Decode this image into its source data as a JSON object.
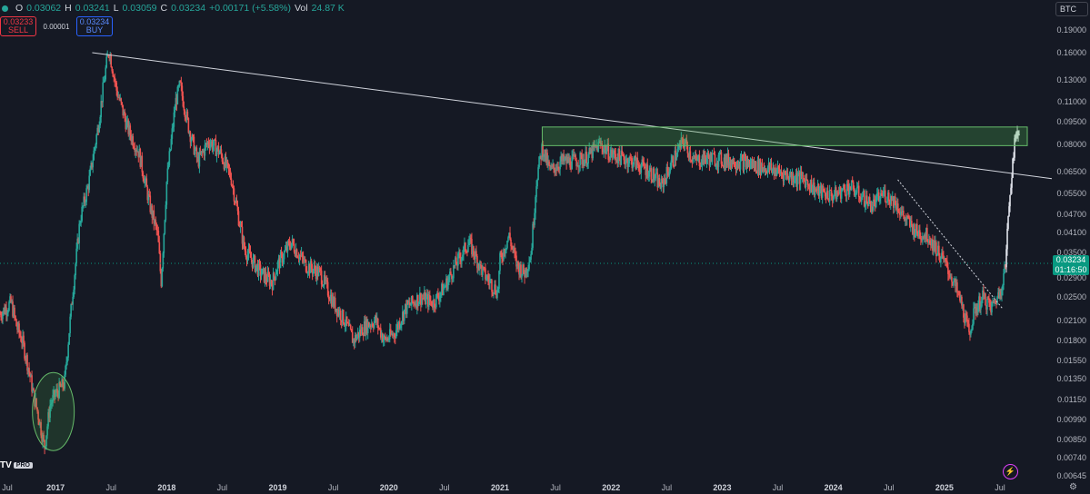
{
  "header": {
    "open_label": "O",
    "open": "0.03062",
    "high_label": "H",
    "high": "0.03241",
    "low_label": "L",
    "low": "0.03059",
    "close_label": "C",
    "close": "0.03234",
    "change": "+0.00171 (+5.58%)",
    "vol_label": "Vol",
    "vol": "24.87 K"
  },
  "trade": {
    "sell_price": "0.03233",
    "sell_label": "SELL",
    "spread": "0.00001",
    "buy_price": "0.03234",
    "buy_label": "BUY"
  },
  "symbol": "BTC",
  "current_price": "0.03234",
  "countdown": "01:16:50",
  "logo_text": "TV",
  "logo_badge": "PRO",
  "colors": {
    "up": "#26a69a",
    "down": "#ef5350",
    "accent": "#089981",
    "zone": "#4caf50"
  },
  "chart_data": {
    "type": "candlestick",
    "scale": "log",
    "ylim": [
      0.0061,
      0.205
    ],
    "y_ticks": [
      "0.19000",
      "0.16000",
      "0.13000",
      "0.11000",
      "0.09500",
      "0.08000",
      "0.06500",
      "0.05500",
      "0.04700",
      "0.04100",
      "0.03500",
      "0.02900",
      "0.02500",
      "0.02100",
      "0.01800",
      "0.01550",
      "0.01350",
      "0.01150",
      "0.00990",
      "0.00850",
      "0.00740",
      "0.00645"
    ],
    "x_ticks": [
      {
        "label": "Jul",
        "t": 2016.5,
        "year": false
      },
      {
        "label": "2017",
        "t": 2017.0,
        "year": true
      },
      {
        "label": "Jul",
        "t": 2017.5,
        "year": false
      },
      {
        "label": "2018",
        "t": 2018.0,
        "year": true
      },
      {
        "label": "Jul",
        "t": 2018.5,
        "year": false
      },
      {
        "label": "2019",
        "t": 2019.0,
        "year": true
      },
      {
        "label": "Jul",
        "t": 2019.5,
        "year": false
      },
      {
        "label": "2020",
        "t": 2020.0,
        "year": true
      },
      {
        "label": "Jul",
        "t": 2020.5,
        "year": false
      },
      {
        "label": "2021",
        "t": 2021.0,
        "year": true
      },
      {
        "label": "Jul",
        "t": 2021.5,
        "year": false
      },
      {
        "label": "2022",
        "t": 2022.0,
        "year": true
      },
      {
        "label": "Jul",
        "t": 2022.5,
        "year": false
      },
      {
        "label": "2023",
        "t": 2023.0,
        "year": true
      },
      {
        "label": "Jul",
        "t": 2023.5,
        "year": false
      },
      {
        "label": "2024",
        "t": 2024.0,
        "year": true
      },
      {
        "label": "Jul",
        "t": 2024.5,
        "year": false
      },
      {
        "label": "2025",
        "t": 2025.0,
        "year": true
      },
      {
        "label": "Jul",
        "t": 2025.5,
        "year": false
      }
    ],
    "series": [
      {
        "values": [
          [
            2016.5,
            0.022
          ],
          [
            2016.6,
            0.024
          ],
          [
            2016.65,
            0.02
          ],
          [
            2016.7,
            0.018
          ],
          [
            2016.75,
            0.015
          ],
          [
            2016.8,
            0.012
          ],
          [
            2016.85,
            0.01
          ],
          [
            2016.9,
            0.008
          ],
          [
            2016.95,
            0.011
          ],
          [
            2017.0,
            0.012
          ],
          [
            2017.08,
            0.013
          ],
          [
            2017.15,
            0.025
          ],
          [
            2017.22,
            0.045
          ],
          [
            2017.3,
            0.06
          ],
          [
            2017.38,
            0.09
          ],
          [
            2017.45,
            0.14
          ],
          [
            2017.48,
            0.165
          ],
          [
            2017.55,
            0.12
          ],
          [
            2017.65,
            0.09
          ],
          [
            2017.75,
            0.075
          ],
          [
            2017.85,
            0.05
          ],
          [
            2017.92,
            0.04
          ],
          [
            2017.95,
            0.028
          ],
          [
            2018.0,
            0.06
          ],
          [
            2018.08,
            0.11
          ],
          [
            2018.12,
            0.125
          ],
          [
            2018.2,
            0.09
          ],
          [
            2018.28,
            0.07
          ],
          [
            2018.38,
            0.082
          ],
          [
            2018.48,
            0.075
          ],
          [
            2018.58,
            0.062
          ],
          [
            2018.7,
            0.036
          ],
          [
            2018.85,
            0.03
          ],
          [
            2018.95,
            0.028
          ],
          [
            2019.0,
            0.032
          ],
          [
            2019.12,
            0.038
          ],
          [
            2019.25,
            0.032
          ],
          [
            2019.38,
            0.03
          ],
          [
            2019.5,
            0.024
          ],
          [
            2019.6,
            0.021
          ],
          [
            2019.68,
            0.018
          ],
          [
            2019.78,
            0.02
          ],
          [
            2019.88,
            0.021
          ],
          [
            2019.96,
            0.018
          ],
          [
            2020.05,
            0.019
          ],
          [
            2020.15,
            0.023
          ],
          [
            2020.28,
            0.025
          ],
          [
            2020.4,
            0.024
          ],
          [
            2020.5,
            0.027
          ],
          [
            2020.6,
            0.032
          ],
          [
            2020.72,
            0.038
          ],
          [
            2020.85,
            0.03
          ],
          [
            2020.98,
            0.026
          ],
          [
            2021.0,
            0.033
          ],
          [
            2021.08,
            0.04
          ],
          [
            2021.15,
            0.032
          ],
          [
            2021.22,
            0.03
          ],
          [
            2021.28,
            0.035
          ],
          [
            2021.33,
            0.062
          ],
          [
            2021.38,
            0.078
          ],
          [
            2021.45,
            0.065
          ],
          [
            2021.55,
            0.07
          ],
          [
            2021.65,
            0.07
          ],
          [
            2021.78,
            0.072
          ],
          [
            2021.9,
            0.08
          ],
          [
            2022.0,
            0.074
          ],
          [
            2022.1,
            0.072
          ],
          [
            2022.2,
            0.07
          ],
          [
            2022.35,
            0.065
          ],
          [
            2022.45,
            0.058
          ],
          [
            2022.55,
            0.07
          ],
          [
            2022.65,
            0.082
          ],
          [
            2022.75,
            0.07
          ],
          [
            2022.85,
            0.072
          ],
          [
            2023.0,
            0.071
          ],
          [
            2023.15,
            0.07
          ],
          [
            2023.3,
            0.068
          ],
          [
            2023.45,
            0.066
          ],
          [
            2023.6,
            0.063
          ],
          [
            2023.75,
            0.061
          ],
          [
            2023.85,
            0.056
          ],
          [
            2024.0,
            0.054
          ],
          [
            2024.15,
            0.058
          ],
          [
            2024.25,
            0.054
          ],
          [
            2024.35,
            0.05
          ],
          [
            2024.45,
            0.055
          ],
          [
            2024.55,
            0.052
          ],
          [
            2024.65,
            0.045
          ],
          [
            2024.75,
            0.041
          ],
          [
            2024.85,
            0.04
          ],
          [
            2024.95,
            0.035
          ],
          [
            2025.05,
            0.03
          ],
          [
            2025.15,
            0.024
          ],
          [
            2025.22,
            0.019
          ],
          [
            2025.28,
            0.023
          ],
          [
            2025.35,
            0.025
          ],
          [
            2025.42,
            0.023
          ],
          [
            2025.5,
            0.026
          ],
          [
            2025.55,
            0.032
          ],
          [
            2025.58,
            0.05
          ],
          [
            2025.62,
            0.075
          ],
          [
            2025.66,
            0.09
          ],
          [
            2025.68,
            0.085
          ]
        ]
      }
    ],
    "annotations": [
      "descending trendline",
      "resistance zone 0.079-0.091",
      "local downtrend line",
      "accumulation ellipse"
    ]
  }
}
